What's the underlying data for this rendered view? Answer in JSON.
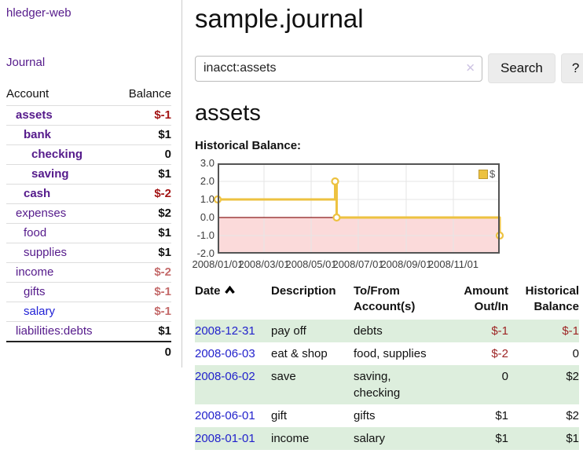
{
  "brand": "hledger-web",
  "nav": {
    "journal": "Journal"
  },
  "sidebar": {
    "col_account": "Account",
    "col_balance": "Balance",
    "accounts": [
      {
        "name": "assets",
        "level": 1,
        "bold": true,
        "balance": "$-1",
        "bcls": "neg"
      },
      {
        "name": "bank",
        "level": 2,
        "bold": true,
        "balance": "$1",
        "bcls": "pos"
      },
      {
        "name": "checking",
        "level": 3,
        "bold": true,
        "balance": "0",
        "bcls": "pos"
      },
      {
        "name": "saving",
        "level": 3,
        "bold": true,
        "balance": "$1",
        "bcls": "pos"
      },
      {
        "name": "cash",
        "level": 2,
        "bold": true,
        "balance": "$-2",
        "bcls": "neg"
      },
      {
        "name": "expenses",
        "level": 1,
        "bold": false,
        "balance": "$2",
        "bcls": "pos"
      },
      {
        "name": "food",
        "level": 2,
        "bold": false,
        "balance": "$1",
        "bcls": "pos"
      },
      {
        "name": "supplies",
        "level": 2,
        "bold": false,
        "balance": "$1",
        "bcls": "pos"
      },
      {
        "name": "income",
        "level": 1,
        "bold": false,
        "balance": "$-2",
        "bcls": "neg-soft"
      },
      {
        "name": "gifts",
        "level": 2,
        "bold": false,
        "balance": "$-1",
        "bcls": "neg-soft"
      },
      {
        "name": "salary",
        "level": 2,
        "bold": false,
        "balance": "$-1",
        "bcls": "neg-soft",
        "link": "blue"
      },
      {
        "name": "liabilities:debts",
        "level": 1,
        "bold": false,
        "balance": "$1",
        "bcls": "pos"
      }
    ],
    "total": "0"
  },
  "header": {
    "title": "sample.journal"
  },
  "search": {
    "value": "inacct:assets",
    "clear_icon": "✕",
    "button": "Search",
    "help": "?"
  },
  "account_page": {
    "title": "assets",
    "chart_title": "Historical Balance:"
  },
  "chart_data": {
    "type": "line",
    "step": true,
    "title": "Historical Balance",
    "legend": "$",
    "legend_position": "top-right",
    "grid": true,
    "line_color": "#edc240",
    "marker": "open-circle",
    "negative_fill": "#fbdada",
    "zero_line_color": "#8b1a1a",
    "ylim": [
      -2.0,
      3.0
    ],
    "yticks": [
      "3.0",
      "2.0",
      "1.0",
      "0.0",
      "-1.0",
      "-2.0"
    ],
    "xrange": [
      "2008-01-01",
      "2008-12-31"
    ],
    "xticks": [
      {
        "label": "2008/01/01",
        "date": "2008-01-01"
      },
      {
        "label": "2008/03/01",
        "date": "2008-03-01"
      },
      {
        "label": "2008/05/01",
        "date": "2008-05-01"
      },
      {
        "label": "2008/07/01",
        "date": "2008-07-01"
      },
      {
        "label": "2008/09/01",
        "date": "2008-09-01"
      },
      {
        "label": "2008/11/01",
        "date": "2008-11-01"
      }
    ],
    "series": [
      {
        "name": "$",
        "points": [
          {
            "date": "2008-01-01",
            "value": 1
          },
          {
            "date": "2008-06-01",
            "value": 2
          },
          {
            "date": "2008-06-03",
            "value": 0
          },
          {
            "date": "2008-12-31",
            "value": -1
          }
        ]
      }
    ]
  },
  "register": {
    "headers": {
      "date": "Date",
      "description": "Description",
      "tofrom": "To/From Account(s)",
      "amount": "Amount Out/In",
      "balance": "Historical Balance"
    },
    "rows": [
      {
        "date": "2008-12-31",
        "description": "pay off",
        "accounts": "debts",
        "amount": "$-1",
        "amount_neg": true,
        "balance": "$-1",
        "balance_neg": true,
        "shaded": true
      },
      {
        "date": "2008-06-03",
        "description": "eat & shop",
        "accounts": "food, supplies",
        "amount": "$-2",
        "amount_neg": true,
        "balance": "0",
        "balance_neg": false,
        "shaded": false
      },
      {
        "date": "2008-06-02",
        "description": "save",
        "accounts": "saving, checking",
        "amount": "0",
        "amount_neg": false,
        "balance": "$2",
        "balance_neg": false,
        "shaded": true
      },
      {
        "date": "2008-06-01",
        "description": "gift",
        "accounts": "gifts",
        "amount": "$1",
        "amount_neg": false,
        "balance": "$2",
        "balance_neg": false,
        "shaded": false
      },
      {
        "date": "2008-01-01",
        "description": "income",
        "accounts": "salary",
        "amount": "$1",
        "amount_neg": false,
        "balance": "$1",
        "balance_neg": false,
        "shaded": true
      }
    ]
  }
}
